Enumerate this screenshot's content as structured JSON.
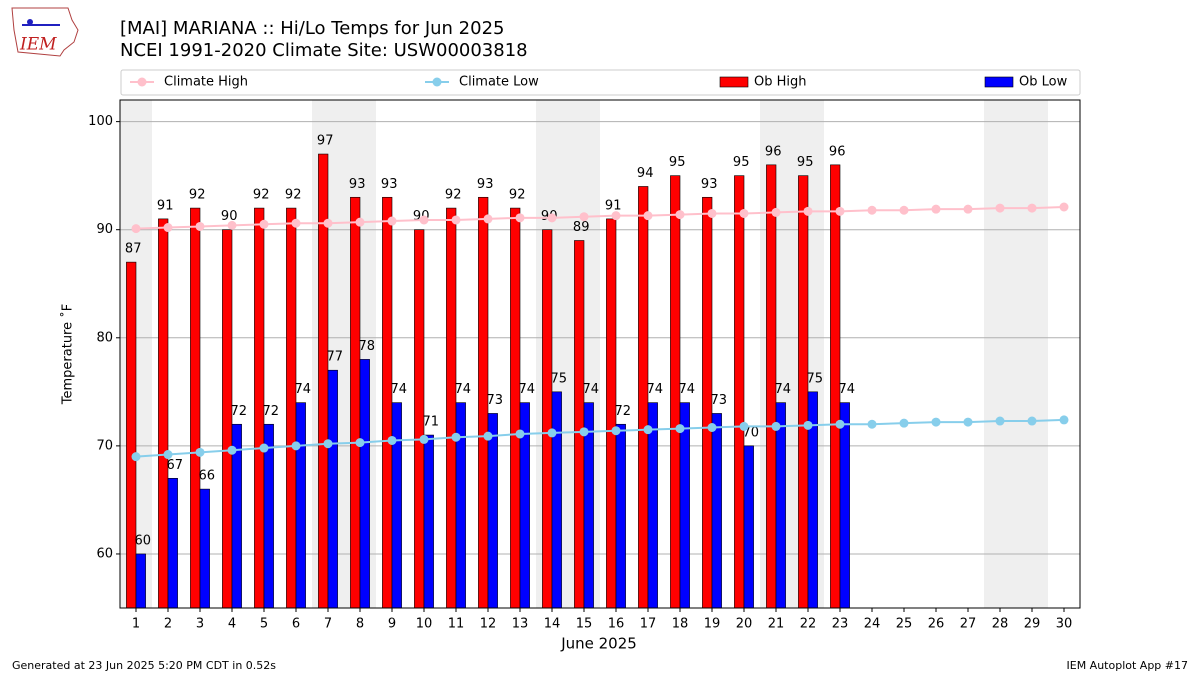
{
  "chart_data": {
    "type": "bar",
    "title": "[MAI] MARIANA :: Hi/Lo Temps for Jun 2025",
    "subtitle": "NCEI 1991-2020 Climate Site: USW00003818",
    "logo_text": "IEM",
    "xlabel": "June 2025",
    "ylabel": "Temperature ˚F",
    "x": [
      1,
      2,
      3,
      4,
      5,
      6,
      7,
      8,
      9,
      10,
      11,
      12,
      13,
      14,
      15,
      16,
      17,
      18,
      19,
      20,
      21,
      22,
      23,
      24,
      25,
      26,
      27,
      28,
      29,
      30
    ],
    "xlim": [
      0.5,
      30.5
    ],
    "xticks": [
      1,
      2,
      3,
      4,
      5,
      6,
      7,
      8,
      9,
      10,
      11,
      12,
      13,
      14,
      15,
      16,
      17,
      18,
      19,
      20,
      21,
      22,
      23,
      24,
      25,
      26,
      27,
      28,
      29,
      30
    ],
    "ylim": [
      55,
      102
    ],
    "yticks": [
      60,
      70,
      80,
      90,
      100
    ],
    "grid": true,
    "weekend_shading": [
      1,
      7,
      8,
      14,
      15,
      21,
      22,
      28,
      29
    ],
    "series": [
      {
        "name": "Climate High",
        "type": "line",
        "color": "#ffc0cb",
        "values": [
          90.1,
          90.2,
          90.3,
          90.4,
          90.5,
          90.6,
          90.6,
          90.7,
          90.8,
          90.9,
          90.9,
          91.0,
          91.1,
          91.1,
          91.2,
          91.3,
          91.3,
          91.4,
          91.5,
          91.5,
          91.6,
          91.7,
          91.7,
          91.8,
          91.8,
          91.9,
          91.9,
          92.0,
          92.0,
          92.1
        ]
      },
      {
        "name": "Climate Low",
        "type": "line",
        "color": "#87ceeb",
        "values": [
          69.0,
          69.2,
          69.4,
          69.6,
          69.8,
          70.0,
          70.2,
          70.3,
          70.5,
          70.6,
          70.8,
          70.9,
          71.1,
          71.2,
          71.3,
          71.4,
          71.5,
          71.6,
          71.7,
          71.8,
          71.8,
          71.9,
          72.0,
          72.0,
          72.1,
          72.2,
          72.2,
          72.3,
          72.3,
          72.4
        ]
      },
      {
        "name": "Ob High",
        "type": "bar",
        "color": "#ff0000",
        "values": [
          87,
          91,
          92,
          90,
          92,
          92,
          97,
          93,
          93,
          90,
          92,
          93,
          92,
          90,
          89,
          91,
          94,
          95,
          93,
          95,
          96,
          95,
          96,
          null,
          null,
          null,
          null,
          null,
          null,
          null
        ]
      },
      {
        "name": "Ob Low",
        "type": "bar",
        "color": "#0000ff",
        "values": [
          60,
          67,
          66,
          72,
          72,
          74,
          77,
          78,
          74,
          71,
          74,
          73,
          74,
          75,
          74,
          72,
          74,
          74,
          73,
          70,
          74,
          75,
          74,
          null,
          null,
          null,
          null,
          null,
          null,
          null
        ]
      }
    ],
    "footer_left": "Generated at 23 Jun 2025 5:20 PM CDT in 0.52s",
    "footer_right": "IEM Autoplot App #17"
  }
}
